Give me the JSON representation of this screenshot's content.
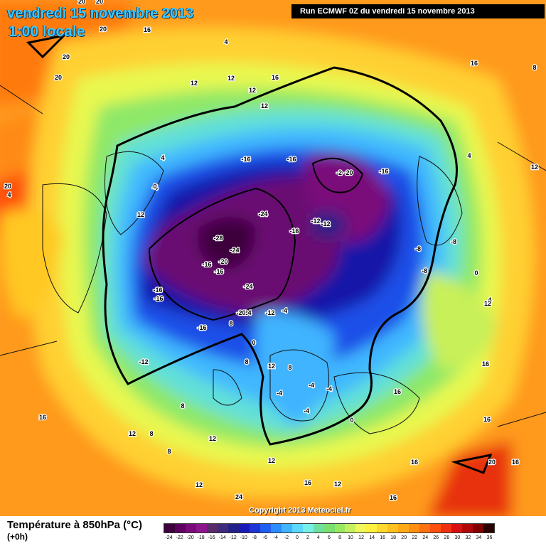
{
  "header": {
    "date": "vendredi 15 novembre 2013",
    "time": "1:00 locale",
    "run": "Run ECMWF 0Z du vendredi 15 novembre 2013"
  },
  "copyright": "Copyright 2013 Meteociel.fr",
  "legend": {
    "title": "Température à 850hPa (°C)",
    "lead": "(+0h)",
    "ticks": [
      "-24",
      "-22",
      "-20",
      "-18",
      "-16",
      "-14",
      "-12",
      "-10",
      "-8",
      "-6",
      "-4",
      "-2",
      "0",
      "2",
      "4",
      "6",
      "8",
      "10",
      "12",
      "14",
      "16",
      "18",
      "20",
      "22",
      "24",
      "26",
      "28",
      "30",
      "32",
      "34",
      "36"
    ],
    "colors": [
      "#3d003d",
      "#5e0060",
      "#7a0a7a",
      "#8e148e",
      "#5a2a6a",
      "#402a7a",
      "#24208a",
      "#1a1ab8",
      "#2034d8",
      "#1e5ef0",
      "#2c8cff",
      "#40b4ff",
      "#5ad8ff",
      "#74f0e8",
      "#6ee0a0",
      "#7ae070",
      "#98e860",
      "#c4f060",
      "#eef858",
      "#fff040",
      "#ffd830",
      "#ffc020",
      "#ffa818",
      "#ff9010",
      "#ff7010",
      "#ff5010",
      "#f03010",
      "#d81010",
      "#b00808",
      "#800000",
      "#2a0000"
    ]
  },
  "map_labels": [
    "20",
    "16",
    "20",
    "20",
    "20",
    "20",
    "4",
    "12",
    "16",
    "12",
    "12",
    "12",
    "16",
    "8",
    "4",
    "12",
    "4",
    "-4",
    "-16",
    "-16",
    "-2",
    "-20",
    "-16",
    "12",
    "4",
    "20",
    "0",
    "-24",
    "-12",
    "-12",
    "-8",
    "-8",
    "-8",
    "0",
    "4",
    "-16",
    "12",
    "-28",
    "-24",
    "-20",
    "-16",
    "-24",
    "-16",
    "-16",
    "-16",
    "-24",
    "-20",
    "-12",
    "-4",
    "-16",
    "-12",
    "16",
    "0",
    "8",
    "12",
    "8",
    "-4",
    "-4",
    "16",
    "-4",
    "-4",
    "0",
    "16",
    "16",
    "8",
    "12",
    "8",
    "8",
    "16",
    "12",
    "12",
    "12",
    "20",
    "16",
    "24",
    "16",
    "16",
    "12",
    "8"
  ]
}
